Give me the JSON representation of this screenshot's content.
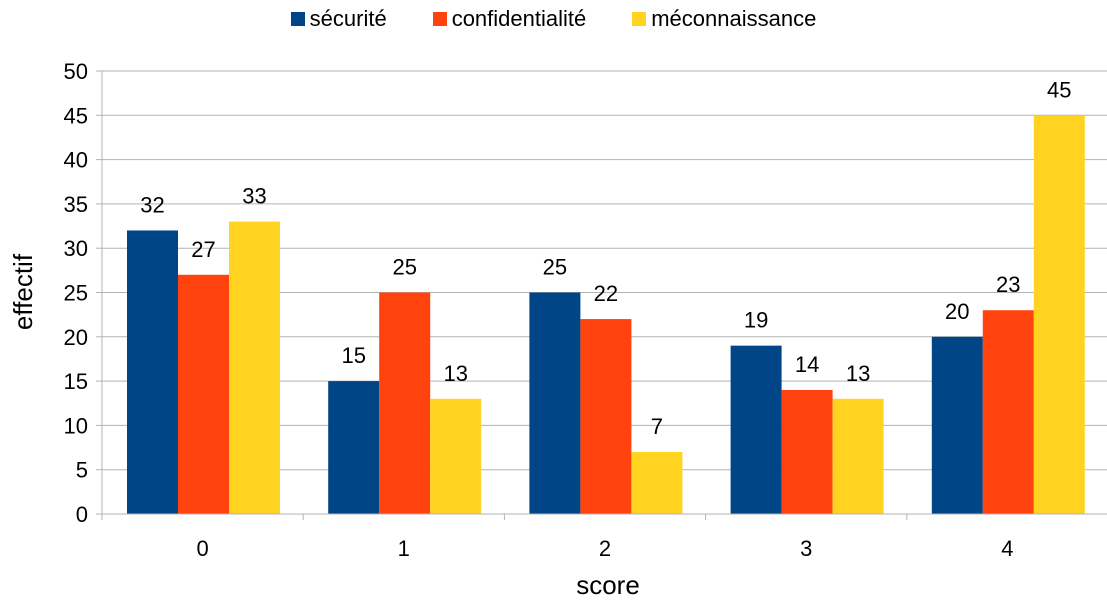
{
  "chart_data": {
    "type": "bar",
    "title": "",
    "xlabel": "score",
    "ylabel": "effectif",
    "categories": [
      "0",
      "1",
      "2",
      "3",
      "4"
    ],
    "series": [
      {
        "name": "sécurité",
        "color": "#004586",
        "values": [
          32,
          15,
          25,
          19,
          20
        ]
      },
      {
        "name": "confidentialité",
        "color": "#FF420E",
        "values": [
          27,
          25,
          22,
          14,
          23
        ]
      },
      {
        "name": "méconnaissance",
        "color": "#FFD320",
        "values": [
          33,
          13,
          7,
          13,
          45
        ]
      }
    ],
    "ylim": [
      0,
      50
    ],
    "yticks": [
      "0",
      "5",
      "10",
      "15",
      "20",
      "25",
      "30",
      "35",
      "40",
      "45",
      "50"
    ],
    "grid": true,
    "legend_position": "top",
    "data_labels": true
  }
}
